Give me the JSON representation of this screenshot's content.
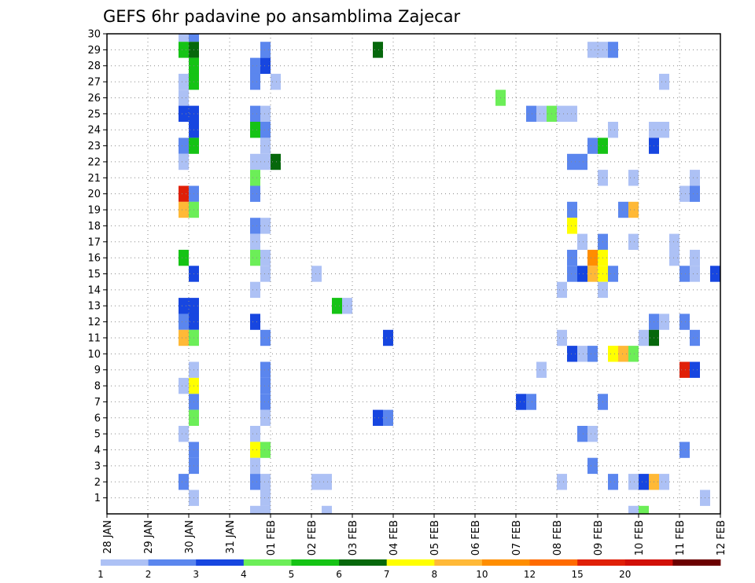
{
  "chart_data": {
    "type": "heatmap",
    "title": "GEFS 6hr padavine po ansamblima Zajecar",
    "xlabel": "",
    "ylabel": "",
    "x_tick_labels": [
      "28 JAN",
      "29 JAN",
      "30 JAN",
      "31 JAN",
      "01 FEB",
      "02 FEB",
      "03 FEB",
      "04 FEB",
      "05 FEB",
      "06 FEB",
      "07 FEB",
      "08 FEB",
      "09 FEB",
      "10 FEB",
      "11 FEB",
      "12 FEB"
    ],
    "xlim": [
      0,
      15
    ],
    "x_units": "days since 28 JAN (6-hour steps)",
    "y_tick_labels": [
      "1",
      "2",
      "3",
      "4",
      "5",
      "6",
      "7",
      "8",
      "9",
      "10",
      "11",
      "12",
      "13",
      "14",
      "15",
      "16",
      "17",
      "18",
      "19",
      "20",
      "21",
      "22",
      "23",
      "24",
      "25",
      "26",
      "27",
      "28",
      "29",
      "30"
    ],
    "ylim": [
      0,
      30
    ],
    "grid": true,
    "legend": {
      "position": "bottom",
      "labels": [
        "1",
        "2",
        "3",
        "4",
        "5",
        "6",
        "7",
        "8",
        "10",
        "12",
        "15",
        "20"
      ],
      "colors": [
        "#adc1f5",
        "#5b86ee",
        "#1746e0",
        "#6cee58",
        "#15c315",
        "#06680c",
        "#ffff00",
        "#ffb937",
        "#ff8e00",
        "#ff6b00",
        "#e02008",
        "#d11008",
        "#6b0000"
      ]
    },
    "cells": [
      {
        "x": 1.75,
        "y": 30,
        "cat": 1
      },
      {
        "x": 2.0,
        "y": 30,
        "cat": 2
      },
      {
        "x": 1.75,
        "y": 29,
        "cat": 5
      },
      {
        "x": 2.0,
        "y": 29,
        "cat": 6
      },
      {
        "x": 3.75,
        "y": 29,
        "cat": 2
      },
      {
        "x": 6.5,
        "y": 29,
        "cat": 6
      },
      {
        "x": 11.75,
        "y": 29,
        "cat": 1
      },
      {
        "x": 12.0,
        "y": 29,
        "cat": 1
      },
      {
        "x": 12.25,
        "y": 29,
        "cat": 2
      },
      {
        "x": 2.0,
        "y": 28,
        "cat": 5
      },
      {
        "x": 3.5,
        "y": 28,
        "cat": 2
      },
      {
        "x": 3.75,
        "y": 28,
        "cat": 3
      },
      {
        "x": 1.75,
        "y": 27,
        "cat": 1
      },
      {
        "x": 2.0,
        "y": 27,
        "cat": 5
      },
      {
        "x": 3.5,
        "y": 27,
        "cat": 2
      },
      {
        "x": 4.0,
        "y": 27,
        "cat": 1
      },
      {
        "x": 13.5,
        "y": 27,
        "cat": 1
      },
      {
        "x": 1.75,
        "y": 26,
        "cat": 1
      },
      {
        "x": 9.5,
        "y": 26,
        "cat": 4
      },
      {
        "x": 1.75,
        "y": 25,
        "cat": 3
      },
      {
        "x": 2.0,
        "y": 25,
        "cat": 3
      },
      {
        "x": 3.5,
        "y": 25,
        "cat": 2
      },
      {
        "x": 3.75,
        "y": 25,
        "cat": 1
      },
      {
        "x": 10.25,
        "y": 25,
        "cat": 2
      },
      {
        "x": 10.5,
        "y": 25,
        "cat": 1
      },
      {
        "x": 10.75,
        "y": 25,
        "cat": 4
      },
      {
        "x": 11.0,
        "y": 25,
        "cat": 1
      },
      {
        "x": 11.25,
        "y": 25,
        "cat": 1
      },
      {
        "x": 2.0,
        "y": 24,
        "cat": 3
      },
      {
        "x": 3.5,
        "y": 24,
        "cat": 5
      },
      {
        "x": 3.75,
        "y": 24,
        "cat": 2
      },
      {
        "x": 12.25,
        "y": 24,
        "cat": 1
      },
      {
        "x": 13.25,
        "y": 24,
        "cat": 1
      },
      {
        "x": 13.5,
        "y": 24,
        "cat": 1
      },
      {
        "x": 1.75,
        "y": 23,
        "cat": 2
      },
      {
        "x": 2.0,
        "y": 23,
        "cat": 5
      },
      {
        "x": 3.75,
        "y": 23,
        "cat": 1
      },
      {
        "x": 11.75,
        "y": 23,
        "cat": 2
      },
      {
        "x": 12.0,
        "y": 23,
        "cat": 5
      },
      {
        "x": 13.25,
        "y": 23,
        "cat": 3
      },
      {
        "x": 1.75,
        "y": 22,
        "cat": 1
      },
      {
        "x": 3.5,
        "y": 22,
        "cat": 1
      },
      {
        "x": 3.75,
        "y": 22,
        "cat": 1
      },
      {
        "x": 4.0,
        "y": 22,
        "cat": 6
      },
      {
        "x": 11.25,
        "y": 22,
        "cat": 2
      },
      {
        "x": 11.5,
        "y": 22,
        "cat": 2
      },
      {
        "x": 3.5,
        "y": 21,
        "cat": 4
      },
      {
        "x": 12.0,
        "y": 21,
        "cat": 1
      },
      {
        "x": 12.75,
        "y": 21,
        "cat": 1
      },
      {
        "x": 14.25,
        "y": 21,
        "cat": 1
      },
      {
        "x": 1.75,
        "y": 20,
        "cat": 11
      },
      {
        "x": 2.0,
        "y": 20,
        "cat": 2
      },
      {
        "x": 3.5,
        "y": 20,
        "cat": 2
      },
      {
        "x": 14.0,
        "y": 20,
        "cat": 1
      },
      {
        "x": 14.25,
        "y": 20,
        "cat": 2
      },
      {
        "x": 1.75,
        "y": 19,
        "cat": 8
      },
      {
        "x": 2.0,
        "y": 19,
        "cat": 4
      },
      {
        "x": 11.25,
        "y": 19,
        "cat": 2
      },
      {
        "x": 12.5,
        "y": 19,
        "cat": 2
      },
      {
        "x": 12.75,
        "y": 19,
        "cat": 8
      },
      {
        "x": 3.5,
        "y": 18,
        "cat": 2
      },
      {
        "x": 3.75,
        "y": 18,
        "cat": 1
      },
      {
        "x": 11.25,
        "y": 18,
        "cat": 7
      },
      {
        "x": 3.5,
        "y": 17,
        "cat": 1
      },
      {
        "x": 11.5,
        "y": 17,
        "cat": 1
      },
      {
        "x": 12.0,
        "y": 17,
        "cat": 2
      },
      {
        "x": 12.75,
        "y": 17,
        "cat": 1
      },
      {
        "x": 13.75,
        "y": 17,
        "cat": 1
      },
      {
        "x": 1.75,
        "y": 16,
        "cat": 5
      },
      {
        "x": 3.5,
        "y": 16,
        "cat": 4
      },
      {
        "x": 3.75,
        "y": 16,
        "cat": 1
      },
      {
        "x": 11.25,
        "y": 16,
        "cat": 2
      },
      {
        "x": 11.75,
        "y": 16,
        "cat": 9
      },
      {
        "x": 12.0,
        "y": 16,
        "cat": 7
      },
      {
        "x": 13.75,
        "y": 16,
        "cat": 1
      },
      {
        "x": 14.25,
        "y": 16,
        "cat": 1
      },
      {
        "x": 2.0,
        "y": 15,
        "cat": 3
      },
      {
        "x": 3.75,
        "y": 15,
        "cat": 1
      },
      {
        "x": 5.0,
        "y": 15,
        "cat": 1
      },
      {
        "x": 11.25,
        "y": 15,
        "cat": 2
      },
      {
        "x": 11.5,
        "y": 15,
        "cat": 3
      },
      {
        "x": 11.75,
        "y": 15,
        "cat": 8
      },
      {
        "x": 12.0,
        "y": 15,
        "cat": 7
      },
      {
        "x": 12.25,
        "y": 15,
        "cat": 2
      },
      {
        "x": 14.0,
        "y": 15,
        "cat": 2
      },
      {
        "x": 14.25,
        "y": 15,
        "cat": 1
      },
      {
        "x": 14.75,
        "y": 15,
        "cat": 3
      },
      {
        "x": 3.5,
        "y": 14,
        "cat": 1
      },
      {
        "x": 11.0,
        "y": 14,
        "cat": 1
      },
      {
        "x": 12.0,
        "y": 14,
        "cat": 1
      },
      {
        "x": 1.75,
        "y": 13,
        "cat": 3
      },
      {
        "x": 2.0,
        "y": 13,
        "cat": 3
      },
      {
        "x": 5.5,
        "y": 13,
        "cat": 5
      },
      {
        "x": 5.75,
        "y": 13,
        "cat": 1
      },
      {
        "x": 1.75,
        "y": 12,
        "cat": 2
      },
      {
        "x": 2.0,
        "y": 12,
        "cat": 3
      },
      {
        "x": 3.5,
        "y": 12,
        "cat": 3
      },
      {
        "x": 13.25,
        "y": 12,
        "cat": 2
      },
      {
        "x": 13.5,
        "y": 12,
        "cat": 1
      },
      {
        "x": 14.0,
        "y": 12,
        "cat": 2
      },
      {
        "x": 1.75,
        "y": 11,
        "cat": 8
      },
      {
        "x": 2.0,
        "y": 11,
        "cat": 4
      },
      {
        "x": 3.75,
        "y": 11,
        "cat": 2
      },
      {
        "x": 6.75,
        "y": 11,
        "cat": 3
      },
      {
        "x": 11.0,
        "y": 11,
        "cat": 1
      },
      {
        "x": 13.0,
        "y": 11,
        "cat": 1
      },
      {
        "x": 13.25,
        "y": 11,
        "cat": 6
      },
      {
        "x": 14.25,
        "y": 11,
        "cat": 2
      },
      {
        "x": 11.25,
        "y": 10,
        "cat": 3
      },
      {
        "x": 11.5,
        "y": 10,
        "cat": 1
      },
      {
        "x": 11.75,
        "y": 10,
        "cat": 2
      },
      {
        "x": 12.25,
        "y": 10,
        "cat": 7
      },
      {
        "x": 12.5,
        "y": 10,
        "cat": 8
      },
      {
        "x": 12.75,
        "y": 10,
        "cat": 4
      },
      {
        "x": 2.0,
        "y": 9,
        "cat": 1
      },
      {
        "x": 3.75,
        "y": 9,
        "cat": 2
      },
      {
        "x": 10.5,
        "y": 9,
        "cat": 1
      },
      {
        "x": 14.0,
        "y": 9,
        "cat": 11
      },
      {
        "x": 14.25,
        "y": 9,
        "cat": 3
      },
      {
        "x": 1.75,
        "y": 8,
        "cat": 1
      },
      {
        "x": 2.0,
        "y": 8,
        "cat": 7
      },
      {
        "x": 3.75,
        "y": 8,
        "cat": 2
      },
      {
        "x": 2.0,
        "y": 7,
        "cat": 2
      },
      {
        "x": 3.75,
        "y": 7,
        "cat": 2
      },
      {
        "x": 10.0,
        "y": 7,
        "cat": 3
      },
      {
        "x": 10.25,
        "y": 7,
        "cat": 2
      },
      {
        "x": 12.0,
        "y": 7,
        "cat": 2
      },
      {
        "x": 2.0,
        "y": 6,
        "cat": 4
      },
      {
        "x": 3.75,
        "y": 6,
        "cat": 1
      },
      {
        "x": 6.5,
        "y": 6,
        "cat": 3
      },
      {
        "x": 6.75,
        "y": 6,
        "cat": 2
      },
      {
        "x": 1.75,
        "y": 5,
        "cat": 1
      },
      {
        "x": 3.5,
        "y": 5,
        "cat": 1
      },
      {
        "x": 11.5,
        "y": 5,
        "cat": 2
      },
      {
        "x": 11.75,
        "y": 5,
        "cat": 1
      },
      {
        "x": 2.0,
        "y": 4,
        "cat": 2
      },
      {
        "x": 3.5,
        "y": 4,
        "cat": 7
      },
      {
        "x": 3.75,
        "y": 4,
        "cat": 4
      },
      {
        "x": 14.0,
        "y": 4,
        "cat": 2
      },
      {
        "x": 2.0,
        "y": 3,
        "cat": 2
      },
      {
        "x": 3.5,
        "y": 3,
        "cat": 1
      },
      {
        "x": 11.75,
        "y": 3,
        "cat": 2
      },
      {
        "x": 1.75,
        "y": 2,
        "cat": 2
      },
      {
        "x": 3.5,
        "y": 2,
        "cat": 2
      },
      {
        "x": 3.75,
        "y": 2,
        "cat": 1
      },
      {
        "x": 5.0,
        "y": 2,
        "cat": 1
      },
      {
        "x": 5.25,
        "y": 2,
        "cat": 1
      },
      {
        "x": 11.0,
        "y": 2,
        "cat": 1
      },
      {
        "x": 12.25,
        "y": 2,
        "cat": 2
      },
      {
        "x": 12.75,
        "y": 2,
        "cat": 1
      },
      {
        "x": 13.0,
        "y": 2,
        "cat": 3
      },
      {
        "x": 13.25,
        "y": 2,
        "cat": 8
      },
      {
        "x": 13.5,
        "y": 2,
        "cat": 1
      },
      {
        "x": 2.0,
        "y": 1,
        "cat": 1
      },
      {
        "x": 3.75,
        "y": 1,
        "cat": 1
      },
      {
        "x": 14.5,
        "y": 1,
        "cat": 1
      },
      {
        "x": 3.5,
        "y": 0,
        "cat": 1
      },
      {
        "x": 3.75,
        "y": 0,
        "cat": 1
      },
      {
        "x": 5.25,
        "y": 0,
        "cat": 1
      },
      {
        "x": 12.75,
        "y": 0,
        "cat": 1
      },
      {
        "x": 13.0,
        "y": 0,
        "cat": 4
      }
    ]
  }
}
